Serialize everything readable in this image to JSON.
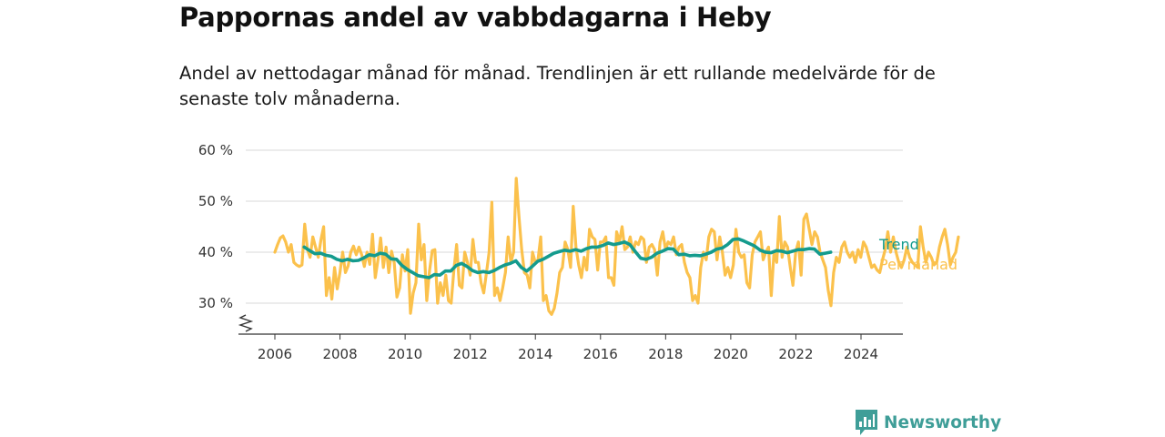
{
  "title": "Pappornas andel av vabbdagarna i Heby",
  "subtitle": "Andel av nettodagar månad för månad. Trendlinjen är ett rullande medelvärde för de senaste tolv månaderna.",
  "brand": "Newsworthy",
  "colors": {
    "trend": "#149b8d",
    "monthly": "#fbc14c",
    "grid": "#d9d9d9",
    "axis": "#333333",
    "brand": "#3f9e98"
  },
  "chart_data": {
    "type": "line",
    "title": "Pappornas andel av vabbdagarna i Heby",
    "xlabel": "",
    "ylabel": "",
    "ylim": [
      24,
      60
    ],
    "xlim": [
      2005.6,
      2025.2
    ],
    "yticks": [
      30,
      40,
      50,
      60
    ],
    "ytick_labels": [
      "30 %",
      "40 %",
      "50 %",
      "60 %"
    ],
    "xticks": [
      2006,
      2008,
      2010,
      2012,
      2014,
      2016,
      2018,
      2020,
      2022,
      2024
    ],
    "xtick_labels": [
      "2006",
      "2008",
      "2010",
      "2012",
      "2014",
      "2016",
      "2018",
      "2020",
      "2022",
      "2024"
    ],
    "grid": true,
    "axis_break": true,
    "legend": "right-end",
    "series": [
      {
        "name": "Per månad",
        "x_start": 2006.0,
        "x_step": 0.0833,
        "values": [
          40,
          41.5,
          42.8,
          43.2,
          42,
          40,
          41.5,
          38,
          37.5,
          37.2,
          37.5,
          45.5,
          40.5,
          39,
          43,
          41,
          39,
          42.5,
          45,
          31.5,
          35,
          30.8,
          37,
          32.8,
          36,
          40,
          36,
          37.3,
          40,
          41.2,
          39.5,
          41,
          39.5,
          37.2,
          40,
          37.6,
          43.5,
          35,
          38.5,
          42.8,
          37,
          41,
          36,
          40.2,
          38,
          31.2,
          33,
          39.5,
          36.3,
          40.5,
          28,
          32,
          34,
          45.5,
          38.5,
          41.5,
          30.5,
          36.3,
          40.3,
          40.5,
          30,
          34,
          31.5,
          35.5,
          30.5,
          30,
          36.5,
          41.5,
          33.5,
          33,
          40,
          38,
          35.5,
          42.5,
          38,
          38,
          34,
          32,
          36,
          40,
          49.8,
          31.5,
          33,
          30.5,
          33,
          36,
          43,
          38,
          40,
          54.5,
          47,
          40.5,
          36,
          35.5,
          33,
          40,
          38,
          38.5,
          43,
          30.5,
          31.5,
          28.5,
          27.8,
          29,
          32,
          36,
          37,
          42,
          40.5,
          37,
          49,
          41,
          37.5,
          35,
          39,
          36.5,
          44.5,
          43,
          42.5,
          36.5,
          42,
          42,
          43,
          35,
          35,
          33.5,
          44,
          42,
          45,
          40.5,
          41,
          43,
          40,
          42,
          41.5,
          43,
          42.5,
          38,
          41,
          41.5,
          40.5,
          35.5,
          42,
          44,
          40.5,
          42,
          41.5,
          43,
          39.5,
          41,
          41.5,
          38,
          36,
          35,
          30.5,
          31.5,
          30,
          37,
          40,
          38.5,
          43,
          44.5,
          44,
          38.5,
          43,
          40,
          35.5,
          37,
          35,
          37.5,
          44.5,
          40,
          39,
          39.5,
          34,
          33,
          39.5,
          42,
          43,
          44,
          38.5,
          40,
          41,
          31.5,
          40,
          38,
          47,
          39,
          42,
          41,
          37,
          33.5,
          40,
          42,
          35.5,
          46.5,
          47.5,
          44.5,
          41.5,
          44,
          43,
          40,
          38.5,
          37,
          32.5,
          29.5,
          36,
          39,
          38,
          41,
          42,
          40,
          39,
          40,
          38,
          40.5,
          39,
          42,
          41,
          39,
          37,
          37.5,
          36.5,
          36,
          38.5,
          40.5,
          44,
          40,
          43,
          40,
          38,
          37,
          38.5,
          41,
          39,
          38,
          37.5,
          37,
          45,
          41,
          38,
          40,
          39,
          37.5,
          38,
          41,
          43,
          44.5,
          41.5,
          37.5,
          39,
          40,
          43
        ]
      },
      {
        "name": "Trend",
        "x_start": 2006.9,
        "x_step": 0.1667,
        "values": [
          41,
          40.3,
          39.7,
          39.8,
          39.4,
          39.2,
          38.6,
          38.3,
          38.6,
          38.3,
          38.4,
          38.9,
          39.5,
          39.3,
          39.8,
          39.6,
          38.7,
          38.6,
          37.4,
          36.6,
          36,
          35.4,
          35.2,
          35,
          35.6,
          35.5,
          36.3,
          36.3,
          37.4,
          37.8,
          37.2,
          36.4,
          36,
          36.2,
          36,
          36.4,
          37,
          37.5,
          37.8,
          38.3,
          37,
          36.3,
          37.2,
          38.2,
          38.6,
          39.2,
          39.8,
          40.1,
          40.4,
          40.2,
          40.5,
          40.2,
          40.7,
          41,
          41,
          41.3,
          41.8,
          41.5,
          41.7,
          42,
          41.5,
          40.1,
          38.8,
          38.6,
          39,
          39.8,
          40.2,
          40.7,
          40.6,
          39.5,
          39.6,
          39.3,
          39.4,
          39.3,
          39.6,
          40,
          40.6,
          40.8,
          41.5,
          42.5,
          42.6,
          42.2,
          41.7,
          41.2,
          40.4,
          40,
          39.9,
          40.3,
          40.2,
          39.9,
          40.2,
          40.5,
          40.5,
          40.7,
          40.6,
          39.6,
          39.8,
          40
        ]
      }
    ]
  }
}
